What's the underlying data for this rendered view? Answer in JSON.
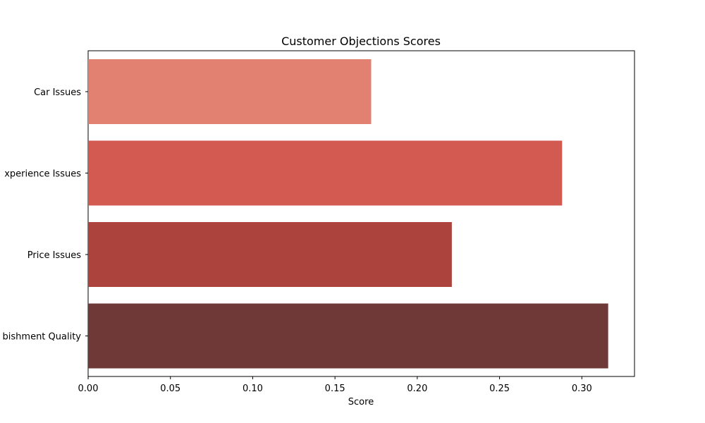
{
  "chart_data": {
    "type": "bar",
    "orientation": "horizontal",
    "title": "Customer Objections Scores",
    "xlabel": "Score",
    "ylabel": "",
    "xlim": [
      0,
      0.332
    ],
    "x_ticks": [
      "0.00",
      "0.05",
      "0.10",
      "0.15",
      "0.20",
      "0.25",
      "0.30"
    ],
    "x_tick_values": [
      0,
      0.05,
      0.1,
      0.15,
      0.2,
      0.25,
      0.3
    ],
    "categories": [
      "Car Issues",
      "Experience Issues",
      "Price Issues",
      "Refurbishment Quality"
    ],
    "category_labels_visible": [
      "Car Issues",
      "xperience Issues",
      "Price Issues",
      "bishment Quality"
    ],
    "values": [
      0.172,
      0.288,
      0.221,
      0.316
    ],
    "colors": [
      "#e28172",
      "#d35a51",
      "#ac433d",
      "#6f3937"
    ],
    "grid": false,
    "legend": false
  }
}
